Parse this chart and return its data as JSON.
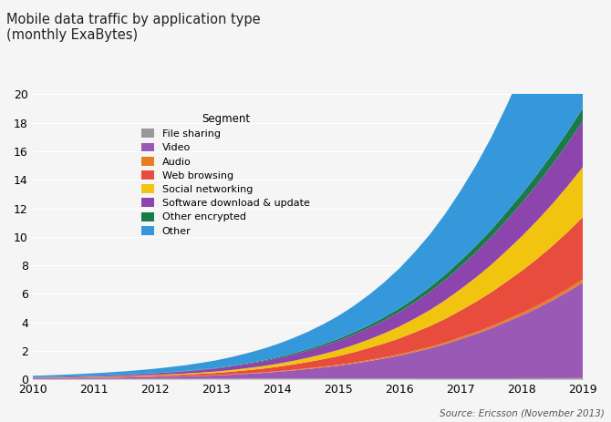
{
  "title": "Mobile data traffic by application type\n(monthly ExaBytes)",
  "source": "Source: Ericsson (November 2013)",
  "xlabel": "",
  "ylabel": "",
  "ylim": [
    0,
    20
  ],
  "xlim": [
    2010,
    2019
  ],
  "yticks": [
    0,
    2,
    4,
    6,
    8,
    10,
    12,
    14,
    16,
    18,
    20
  ],
  "xticks": [
    2010,
    2011,
    2012,
    2013,
    2014,
    2015,
    2016,
    2017,
    2018,
    2019
  ],
  "years": [
    2010,
    2010.25,
    2010.5,
    2010.75,
    2011,
    2011.25,
    2011.5,
    2011.75,
    2012,
    2012.25,
    2012.5,
    2012.75,
    2013,
    2013.25,
    2013.5,
    2013.75,
    2014,
    2014.25,
    2014.5,
    2014.75,
    2015,
    2015.25,
    2015.5,
    2015.75,
    2016,
    2016.25,
    2016.5,
    2016.75,
    2017,
    2017.25,
    2017.5,
    2017.75,
    2018,
    2018.25,
    2018.5,
    2018.75,
    2019
  ],
  "segments": {
    "File sharing": [
      0.02,
      0.022,
      0.024,
      0.026,
      0.028,
      0.03,
      0.032,
      0.034,
      0.036,
      0.038,
      0.04,
      0.042,
      0.044,
      0.046,
      0.048,
      0.05,
      0.052,
      0.054,
      0.056,
      0.058,
      0.06,
      0.062,
      0.064,
      0.066,
      0.068,
      0.07,
      0.072,
      0.074,
      0.076,
      0.078,
      0.08,
      0.082,
      0.084,
      0.086,
      0.088,
      0.09,
      0.092
    ],
    "Video": [
      0.05,
      0.055,
      0.062,
      0.07,
      0.08,
      0.09,
      0.1,
      0.115,
      0.13,
      0.15,
      0.17,
      0.2,
      0.23,
      0.28,
      0.34,
      0.4,
      0.48,
      0.57,
      0.67,
      0.78,
      0.9,
      1.05,
      1.22,
      1.4,
      1.6,
      1.85,
      2.1,
      2.4,
      2.75,
      3.1,
      3.5,
      3.95,
      4.4,
      4.9,
      5.45,
      6.05,
      6.7
    ],
    "Audio": [
      0.005,
      0.006,
      0.007,
      0.008,
      0.009,
      0.01,
      0.012,
      0.014,
      0.016,
      0.018,
      0.02,
      0.022,
      0.025,
      0.028,
      0.032,
      0.036,
      0.04,
      0.045,
      0.05,
      0.056,
      0.062,
      0.068,
      0.075,
      0.082,
      0.09,
      0.098,
      0.107,
      0.116,
      0.126,
      0.136,
      0.147,
      0.158,
      0.17,
      0.183,
      0.196,
      0.21,
      0.225
    ],
    "Web browsing": [
      0.02,
      0.025,
      0.03,
      0.035,
      0.04,
      0.048,
      0.057,
      0.067,
      0.08,
      0.095,
      0.11,
      0.13,
      0.155,
      0.185,
      0.22,
      0.26,
      0.31,
      0.37,
      0.44,
      0.52,
      0.61,
      0.72,
      0.84,
      0.97,
      1.12,
      1.28,
      1.46,
      1.66,
      1.88,
      2.12,
      2.38,
      2.66,
      2.96,
      3.28,
      3.62,
      3.98,
      4.36
    ],
    "Social networking": [
      0.01,
      0.012,
      0.015,
      0.018,
      0.022,
      0.027,
      0.033,
      0.04,
      0.048,
      0.058,
      0.07,
      0.084,
      0.1,
      0.12,
      0.145,
      0.175,
      0.21,
      0.25,
      0.3,
      0.36,
      0.43,
      0.51,
      0.6,
      0.71,
      0.83,
      0.97,
      1.13,
      1.31,
      1.5,
      1.71,
      1.93,
      2.17,
      2.42,
      2.68,
      2.95,
      3.23,
      3.52
    ],
    "Software download & update": [
      0.04,
      0.045,
      0.05,
      0.057,
      0.065,
      0.075,
      0.087,
      0.1,
      0.115,
      0.135,
      0.158,
      0.185,
      0.215,
      0.25,
      0.29,
      0.335,
      0.385,
      0.44,
      0.5,
      0.565,
      0.64,
      0.72,
      0.81,
      0.91,
      1.02,
      1.14,
      1.27,
      1.42,
      1.58,
      1.75,
      1.93,
      2.13,
      2.33,
      2.54,
      2.76,
      2.99,
      3.23
    ],
    "Other encrypted": [
      0.005,
      0.006,
      0.007,
      0.008,
      0.009,
      0.011,
      0.013,
      0.015,
      0.018,
      0.021,
      0.025,
      0.03,
      0.035,
      0.042,
      0.05,
      0.06,
      0.072,
      0.086,
      0.1,
      0.12,
      0.14,
      0.165,
      0.193,
      0.224,
      0.258,
      0.295,
      0.335,
      0.378,
      0.424,
      0.473,
      0.525,
      0.58,
      0.638,
      0.699,
      0.763,
      0.83,
      0.9
    ],
    "Other": [
      0.1,
      0.115,
      0.132,
      0.152,
      0.175,
      0.201,
      0.231,
      0.265,
      0.305,
      0.35,
      0.402,
      0.462,
      0.53,
      0.61,
      0.7,
      0.804,
      0.923,
      1.06,
      1.218,
      1.4,
      1.608,
      1.848,
      2.124,
      2.441,
      2.805,
      3.225,
      3.705,
      4.258,
      4.892,
      5.625,
      6.469,
      7.44,
      8.556,
      9.839,
      11.315,
      13.012,
      14.96
    ]
  },
  "colors": {
    "File sharing": "#999999",
    "Video": "#9b59b6",
    "Audio": "#e67e22",
    "Web browsing": "#e74c3c",
    "Social networking": "#f1c40f",
    "Software download & update": "#8e44ad",
    "Other encrypted": "#1a7a4a",
    "Other": "#3498db"
  },
  "legend_title": "Segment",
  "background_color": "#f5f5f5",
  "plot_background": "#f5f5f5"
}
